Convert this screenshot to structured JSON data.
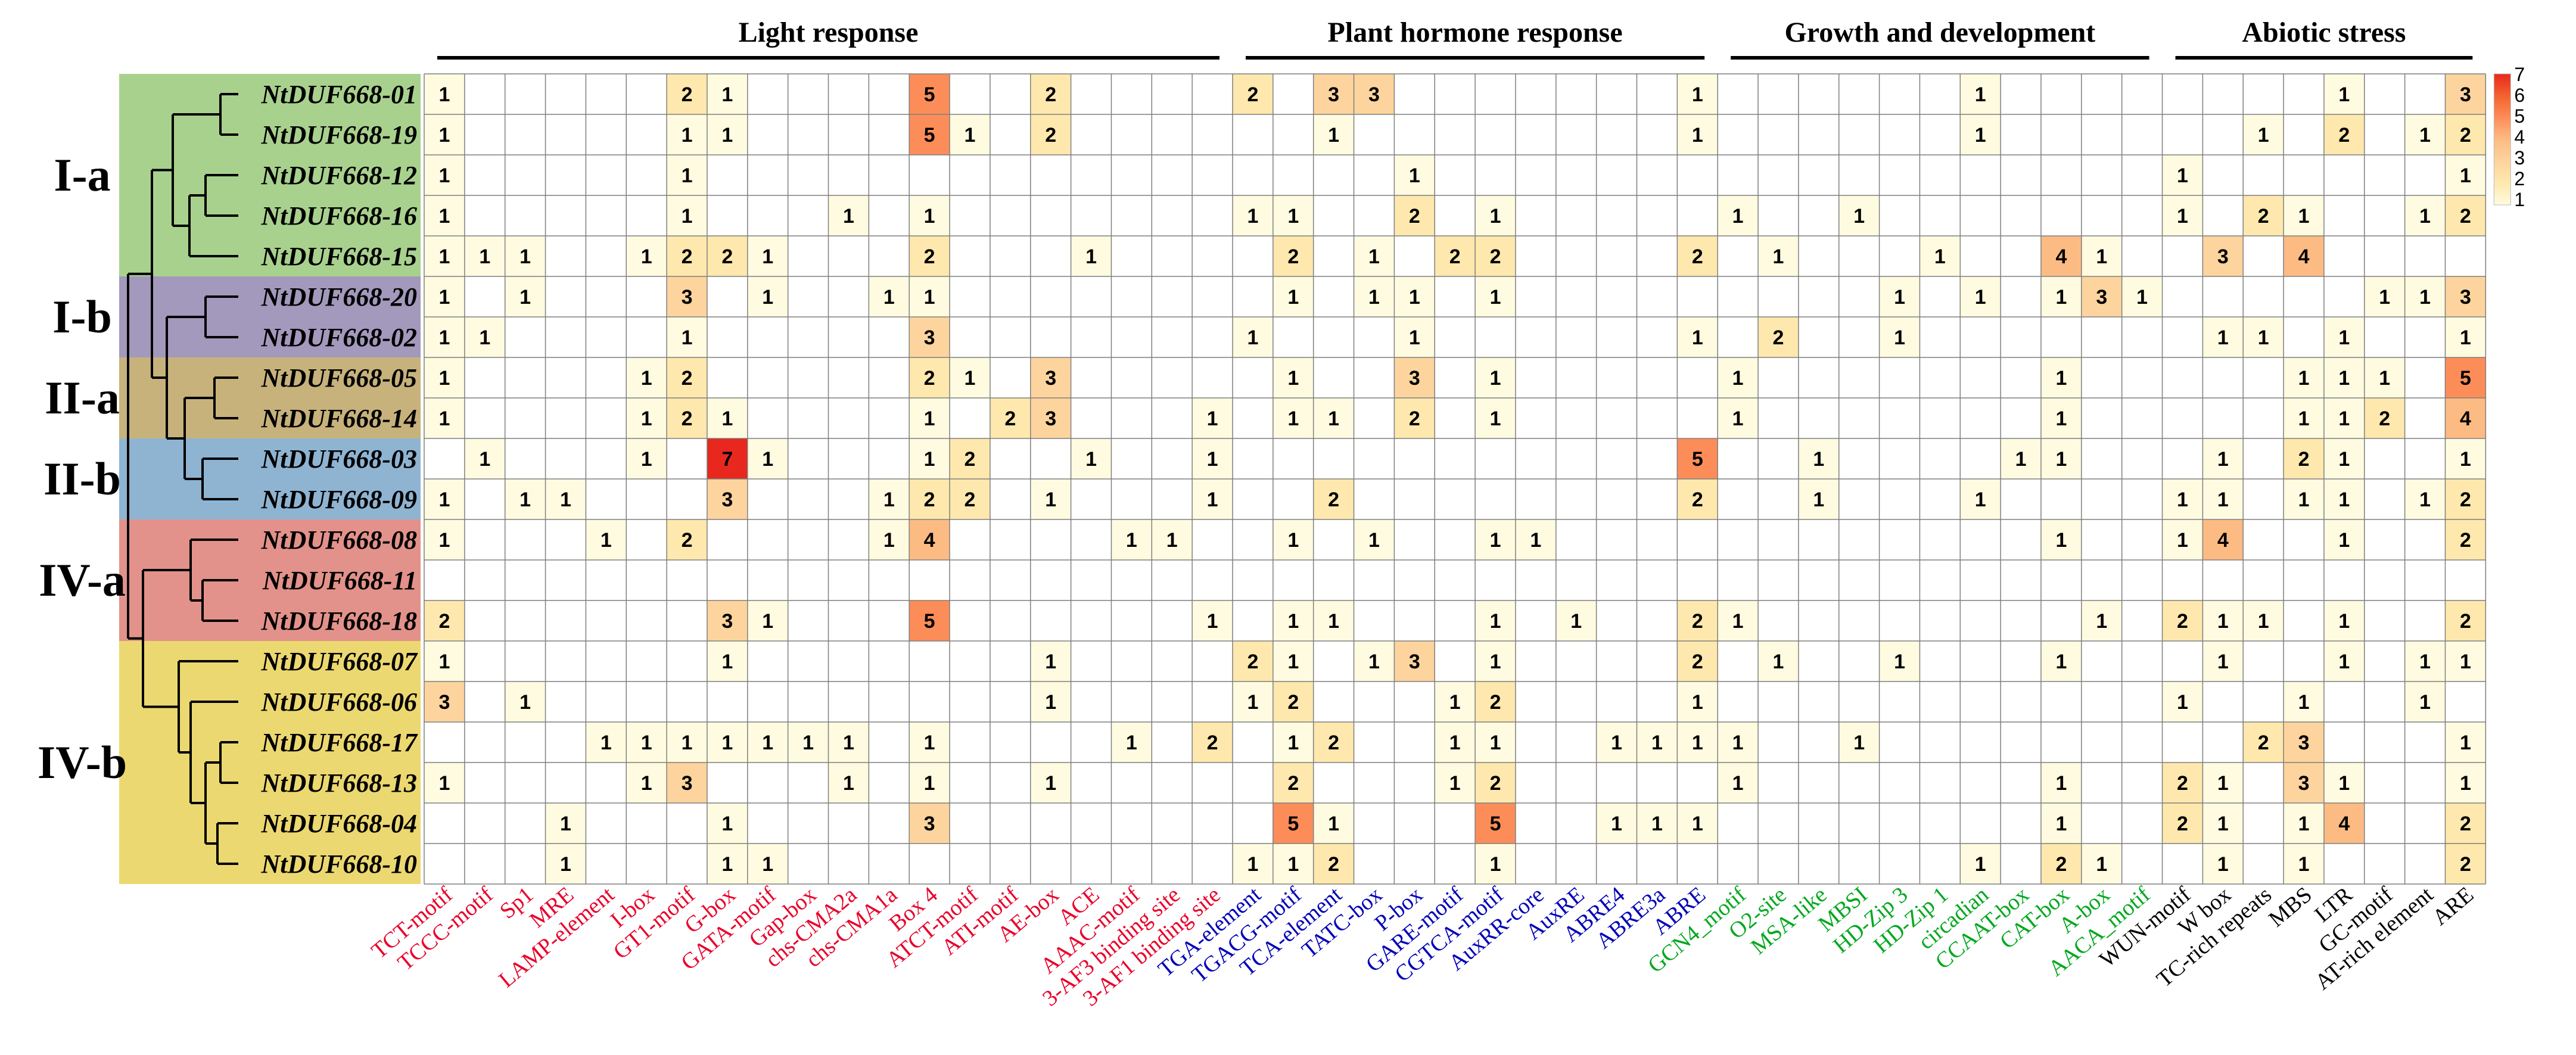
{
  "chart_data": {
    "type": "heatmap",
    "colorscale": {
      "min": 1,
      "max": 7,
      "ticks": [
        "7",
        "6",
        "5",
        "4",
        "3",
        "2",
        "1"
      ],
      "colors": [
        "#fffbe0",
        "#fee8ad",
        "#fdd49e",
        "#fdbb84",
        "#fc8d59",
        "#f4622e",
        "#e8281e"
      ]
    },
    "categories": [
      {
        "label": "Light response",
        "start": 0,
        "end": 19,
        "color": "#e8002a"
      },
      {
        "label": "Plant hormone response",
        "start": 20,
        "end": 31,
        "color": "#0000b8"
      },
      {
        "label": "Growth and development",
        "start": 32,
        "end": 42,
        "color": "#00a81e"
      },
      {
        "label": "Abiotic stress",
        "start": 43,
        "end": 50,
        "color": "#000000"
      }
    ],
    "columns": [
      "TCT-motif",
      "TCCC-motif",
      "Sp1",
      "MRE",
      "LAMP-element",
      "I-box",
      "GT1-motif",
      "G-box",
      "GATA-motif",
      "Gap-box",
      "chs-CMA2a",
      "chs-CMA1a",
      "Box 4",
      "ATCT-motif",
      "ATI-motif",
      "AE-box",
      "ACE",
      "AAAC-motif",
      "3-AF3 binding site",
      "3-AF1 binding site",
      "TGA-element",
      "TGACG-motif",
      "TCA-element",
      "TATC-box",
      "P-box",
      "GARE-motif",
      "CGTCA-motif",
      "AuxRR-core",
      "AuxRE",
      "ABRE4",
      "ABRE3a",
      "ABRE",
      "GCN4_motif",
      "O2-site",
      "MSA-like",
      "MBSI",
      "HD-Zip 3",
      "HD-Zip 1",
      "circadian",
      "CCAAT-box",
      "CAT-box",
      "A-box",
      "AACA_motif",
      "WUN-motif",
      "W box",
      "TC-rich repeats",
      "MBS",
      "LTR",
      "GC-motif",
      "AT-rich element",
      "ARE"
    ],
    "genes": [
      "NtDUF668-01",
      "NtDUF668-19",
      "NtDUF668-12",
      "NtDUF668-16",
      "NtDUF668-15",
      "NtDUF668-20",
      "NtDUF668-02",
      "NtDUF668-05",
      "NtDUF668-14",
      "NtDUF668-03",
      "NtDUF668-09",
      "NtDUF668-08",
      "NtDUF668-11",
      "NtDUF668-18",
      "NtDUF668-07",
      "NtDUF668-06",
      "NtDUF668-17",
      "NtDUF668-13",
      "NtDUF668-04",
      "NtDUF668-10"
    ],
    "groups": [
      {
        "label": "I-a",
        "start": 0,
        "end": 4,
        "color": "#a9d18e"
      },
      {
        "label": "I-b",
        "start": 5,
        "end": 6,
        "color": "#a399bc"
      },
      {
        "label": "II-a",
        "start": 7,
        "end": 8,
        "color": "#c7b27c"
      },
      {
        "label": "II-b",
        "start": 9,
        "end": 10,
        "color": "#8fb4d2"
      },
      {
        "label": "IV-a",
        "start": 11,
        "end": 13,
        "color": "#e2928a"
      },
      {
        "label": "IV-b",
        "start": 14,
        "end": 19,
        "color": "#ecd870"
      }
    ],
    "values": [
      [
        1,
        0,
        0,
        0,
        0,
        0,
        2,
        1,
        0,
        0,
        0,
        0,
        5,
        0,
        0,
        2,
        0,
        0,
        0,
        0,
        2,
        0,
        3,
        3,
        0,
        0,
        0,
        0,
        0,
        0,
        0,
        1,
        0,
        0,
        0,
        0,
        0,
        0,
        1,
        0,
        0,
        0,
        0,
        0,
        0,
        0,
        0,
        1,
        0,
        0,
        3
      ],
      [
        1,
        0,
        0,
        0,
        0,
        0,
        1,
        1,
        0,
        0,
        0,
        0,
        5,
        1,
        0,
        2,
        0,
        0,
        0,
        0,
        0,
        0,
        1,
        0,
        0,
        0,
        0,
        0,
        0,
        0,
        0,
        1,
        0,
        0,
        0,
        0,
        0,
        0,
        1,
        0,
        0,
        0,
        0,
        0,
        0,
        1,
        0,
        2,
        0,
        1,
        2
      ],
      [
        1,
        0,
        0,
        0,
        0,
        0,
        1,
        0,
        0,
        0,
        0,
        0,
        0,
        0,
        0,
        0,
        0,
        0,
        0,
        0,
        0,
        0,
        0,
        0,
        1,
        0,
        0,
        0,
        0,
        0,
        0,
        0,
        0,
        0,
        0,
        0,
        0,
        0,
        0,
        0,
        0,
        0,
        0,
        1,
        0,
        0,
        0,
        0,
        0,
        0,
        1
      ],
      [
        1,
        0,
        0,
        0,
        0,
        0,
        1,
        0,
        0,
        0,
        1,
        0,
        1,
        0,
        0,
        0,
        0,
        0,
        0,
        0,
        1,
        1,
        0,
        0,
        2,
        0,
        1,
        0,
        0,
        0,
        0,
        0,
        1,
        0,
        0,
        1,
        0,
        0,
        0,
        0,
        0,
        0,
        0,
        1,
        0,
        2,
        1,
        0,
        0,
        1,
        2
      ],
      [
        1,
        1,
        1,
        0,
        0,
        1,
        2,
        2,
        1,
        0,
        0,
        0,
        2,
        0,
        0,
        0,
        1,
        0,
        0,
        0,
        0,
        2,
        0,
        1,
        0,
        2,
        2,
        0,
        0,
        0,
        0,
        2,
        0,
        1,
        0,
        0,
        0,
        1,
        0,
        0,
        4,
        1,
        0,
        0,
        3,
        0,
        4,
        0,
        0,
        0,
        0
      ],
      [
        1,
        0,
        1,
        0,
        0,
        0,
        3,
        0,
        1,
        0,
        0,
        1,
        1,
        0,
        0,
        0,
        0,
        0,
        0,
        0,
        0,
        1,
        0,
        1,
        1,
        0,
        1,
        0,
        0,
        0,
        0,
        0,
        0,
        0,
        0,
        0,
        1,
        0,
        1,
        0,
        1,
        3,
        1,
        0,
        0,
        0,
        0,
        0,
        1,
        1,
        3
      ],
      [
        1,
        1,
        0,
        0,
        0,
        0,
        1,
        0,
        0,
        0,
        0,
        0,
        3,
        0,
        0,
        0,
        0,
        0,
        0,
        0,
        1,
        0,
        0,
        0,
        1,
        0,
        0,
        0,
        0,
        0,
        0,
        1,
        0,
        2,
        0,
        0,
        1,
        0,
        0,
        0,
        0,
        0,
        0,
        0,
        1,
        1,
        0,
        1,
        0,
        0,
        1
      ],
      [
        1,
        0,
        0,
        0,
        0,
        1,
        2,
        0,
        0,
        0,
        0,
        0,
        2,
        1,
        0,
        3,
        0,
        0,
        0,
        0,
        0,
        1,
        0,
        0,
        3,
        0,
        1,
        0,
        0,
        0,
        0,
        0,
        1,
        0,
        0,
        0,
        0,
        0,
        0,
        0,
        1,
        0,
        0,
        0,
        0,
        0,
        1,
        1,
        1,
        0,
        5
      ],
      [
        1,
        0,
        0,
        0,
        0,
        1,
        2,
        1,
        0,
        0,
        0,
        0,
        1,
        0,
        2,
        3,
        0,
        0,
        0,
        1,
        0,
        1,
        1,
        0,
        2,
        0,
        1,
        0,
        0,
        0,
        0,
        0,
        1,
        0,
        0,
        0,
        0,
        0,
        0,
        0,
        1,
        0,
        0,
        0,
        0,
        0,
        1,
        1,
        2,
        0,
        4
      ],
      [
        0,
        1,
        0,
        0,
        0,
        1,
        0,
        7,
        1,
        0,
        0,
        0,
        1,
        2,
        0,
        0,
        1,
        0,
        0,
        1,
        0,
        0,
        0,
        0,
        0,
        0,
        0,
        0,
        0,
        0,
        0,
        5,
        0,
        0,
        1,
        0,
        0,
        0,
        0,
        1,
        1,
        0,
        0,
        0,
        1,
        0,
        2,
        1,
        0,
        0,
        1
      ],
      [
        1,
        0,
        1,
        1,
        0,
        0,
        0,
        3,
        0,
        0,
        0,
        1,
        2,
        2,
        0,
        1,
        0,
        0,
        0,
        1,
        0,
        0,
        2,
        0,
        0,
        0,
        0,
        0,
        0,
        0,
        0,
        2,
        0,
        0,
        1,
        0,
        0,
        0,
        1,
        0,
        0,
        0,
        0,
        1,
        1,
        0,
        1,
        1,
        0,
        1,
        2
      ],
      [
        1,
        0,
        0,
        0,
        1,
        0,
        2,
        0,
        0,
        0,
        0,
        1,
        4,
        0,
        0,
        0,
        0,
        1,
        1,
        0,
        0,
        1,
        0,
        1,
        0,
        0,
        1,
        1,
        0,
        0,
        0,
        0,
        0,
        0,
        0,
        0,
        0,
        0,
        0,
        0,
        1,
        0,
        0,
        1,
        4,
        0,
        0,
        1,
        0,
        0,
        2
      ],
      [
        0,
        0,
        0,
        0,
        0,
        0,
        0,
        0,
        0,
        0,
        0,
        0,
        0,
        0,
        0,
        0,
        0,
        0,
        0,
        0,
        0,
        0,
        0,
        0,
        0,
        0,
        0,
        0,
        0,
        0,
        0,
        0,
        0,
        0,
        0,
        0,
        0,
        0,
        0,
        0,
        0,
        0,
        0,
        0,
        0,
        0,
        0,
        0,
        0,
        0,
        0
      ],
      [
        2,
        0,
        0,
        0,
        0,
        0,
        0,
        3,
        1,
        0,
        0,
        0,
        5,
        0,
        0,
        0,
        0,
        0,
        0,
        1,
        0,
        1,
        1,
        0,
        0,
        0,
        1,
        0,
        1,
        0,
        0,
        2,
        1,
        0,
        0,
        0,
        0,
        0,
        0,
        0,
        0,
        1,
        0,
        2,
        1,
        1,
        0,
        1,
        0,
        0,
        2
      ],
      [
        1,
        0,
        0,
        0,
        0,
        0,
        0,
        1,
        0,
        0,
        0,
        0,
        0,
        0,
        0,
        1,
        0,
        0,
        0,
        0,
        2,
        1,
        0,
        1,
        3,
        0,
        1,
        0,
        0,
        0,
        0,
        2,
        0,
        1,
        0,
        0,
        1,
        0,
        0,
        0,
        1,
        0,
        0,
        0,
        1,
        0,
        0,
        1,
        0,
        1,
        1
      ],
      [
        3,
        0,
        1,
        0,
        0,
        0,
        0,
        0,
        0,
        0,
        0,
        0,
        0,
        0,
        0,
        1,
        0,
        0,
        0,
        0,
        1,
        2,
        0,
        0,
        0,
        1,
        2,
        0,
        0,
        0,
        0,
        1,
        0,
        0,
        0,
        0,
        0,
        0,
        0,
        0,
        0,
        0,
        0,
        1,
        0,
        0,
        1,
        0,
        0,
        1,
        0
      ],
      [
        0,
        0,
        0,
        0,
        1,
        1,
        1,
        1,
        1,
        1,
        1,
        0,
        1,
        0,
        0,
        0,
        0,
        1,
        0,
        2,
        0,
        1,
        2,
        0,
        0,
        1,
        1,
        0,
        0,
        1,
        1,
        1,
        1,
        0,
        0,
        1,
        0,
        0,
        0,
        0,
        0,
        0,
        0,
        0,
        0,
        2,
        3,
        0,
        0,
        0,
        1
      ],
      [
        1,
        0,
        0,
        0,
        0,
        1,
        3,
        0,
        0,
        0,
        1,
        0,
        1,
        0,
        0,
        1,
        0,
        0,
        0,
        0,
        0,
        2,
        0,
        0,
        0,
        1,
        2,
        0,
        0,
        0,
        0,
        0,
        1,
        0,
        0,
        0,
        0,
        0,
        0,
        0,
        1,
        0,
        0,
        2,
        1,
        0,
        3,
        1,
        0,
        0,
        1
      ],
      [
        0,
        0,
        0,
        1,
        0,
        0,
        0,
        1,
        0,
        0,
        0,
        0,
        3,
        0,
        0,
        0,
        0,
        0,
        0,
        0,
        0,
        5,
        1,
        0,
        0,
        0,
        5,
        0,
        0,
        1,
        1,
        1,
        0,
        0,
        0,
        0,
        0,
        0,
        0,
        0,
        1,
        0,
        0,
        2,
        1,
        0,
        1,
        4,
        0,
        0,
        2
      ],
      [
        0,
        0,
        0,
        1,
        0,
        0,
        0,
        1,
        1,
        0,
        0,
        0,
        0,
        0,
        0,
        0,
        0,
        0,
        0,
        0,
        1,
        1,
        2,
        0,
        0,
        0,
        1,
        0,
        0,
        0,
        0,
        0,
        0,
        0,
        0,
        0,
        0,
        0,
        1,
        0,
        2,
        1,
        0,
        0,
        1,
        0,
        1,
        0,
        0,
        0,
        2
      ]
    ]
  }
}
